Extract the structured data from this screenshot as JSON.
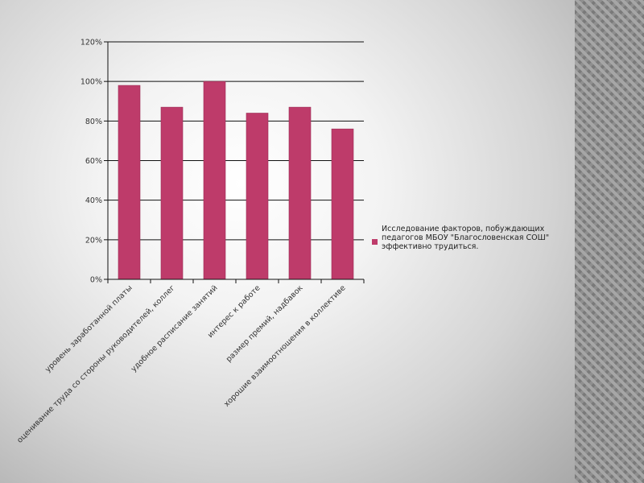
{
  "colors": {
    "bar": "#be3b6a",
    "bar_stroke": "#9b2e55",
    "grid": "#111111",
    "text": "#333333"
  },
  "chart_data": {
    "type": "bar",
    "categories": [
      "уровень заработанной платы",
      "оценивание труда со стороны руководителей, коллег",
      "удобное расписание занятий",
      "интерес к работе",
      "размер премий, надбавок",
      "хорошие взаимоотношения в коллективе"
    ],
    "series": [
      {
        "name": "Исследование факторов, побуждающих педагогов МБОУ \"Благословенская СОШ\" эффективно трудиться.",
        "values": [
          98,
          87,
          100,
          84,
          87,
          76
        ]
      }
    ],
    "y_ticks": [
      "0%",
      "20%",
      "40%",
      "60%",
      "80%",
      "100%",
      "120%"
    ],
    "ylim": [
      0,
      120
    ],
    "grid": true,
    "legend_position": "right"
  }
}
